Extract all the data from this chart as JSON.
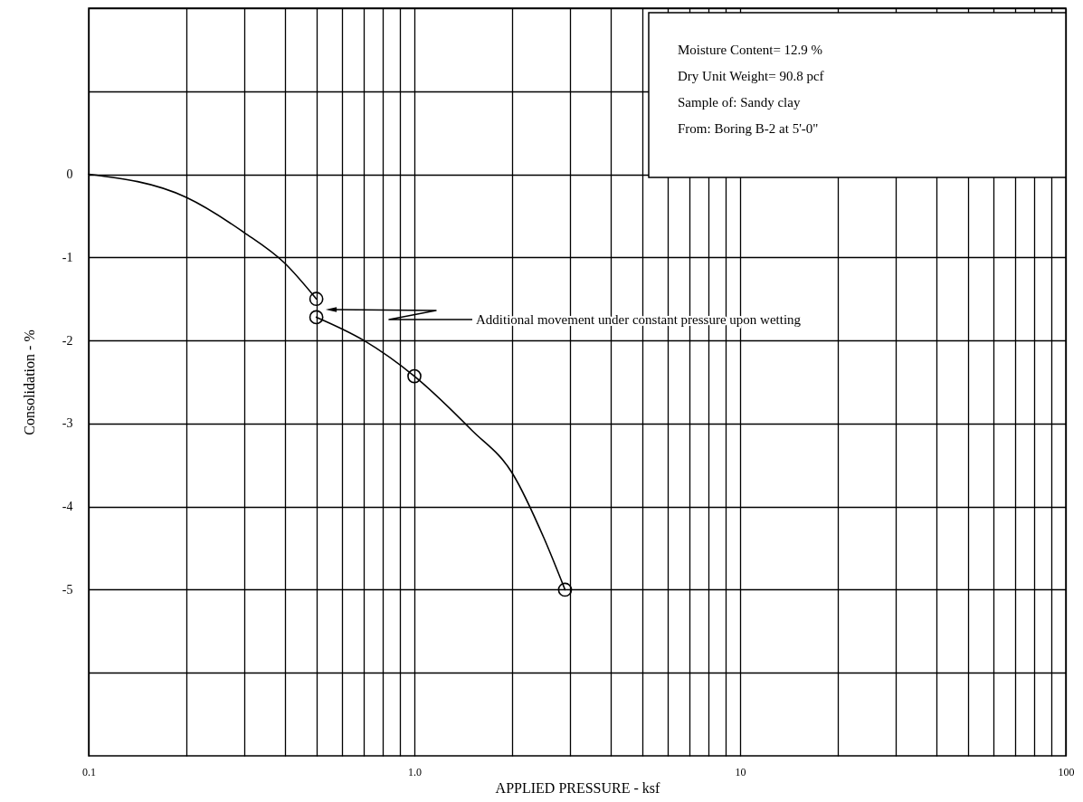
{
  "chart_data": {
    "type": "line",
    "xlabel": "APPLIED PRESSURE - ksf",
    "ylabel": "Consolidation - %",
    "log": "x",
    "grid": true,
    "xlim": [
      0.1,
      100
    ],
    "xticks": [
      {
        "value": 0.1,
        "label": "0.1"
      },
      {
        "value": 0.2,
        "label": null
      },
      {
        "value": 0.3,
        "label": null
      },
      {
        "value": 0.4,
        "label": null
      },
      {
        "value": 0.5,
        "label": null
      },
      {
        "value": 0.6,
        "label": null
      },
      {
        "value": 0.7,
        "label": null
      },
      {
        "value": 0.8,
        "label": null
      },
      {
        "value": 0.9,
        "label": null
      },
      {
        "value": 1,
        "label": "1.0"
      },
      {
        "value": 2,
        "label": null
      },
      {
        "value": 3,
        "label": null
      },
      {
        "value": 4,
        "label": null
      },
      {
        "value": 5,
        "label": null
      },
      {
        "value": 6,
        "label": null
      },
      {
        "value": 7,
        "label": null
      },
      {
        "value": 8,
        "label": null
      },
      {
        "value": 9,
        "label": null
      },
      10,
      {
        "value": 20,
        "label": null
      },
      {
        "value": 30,
        "label": null
      },
      {
        "value": 40,
        "label": null
      },
      {
        "value": 50,
        "label": null
      },
      {
        "value": 60,
        "label": null
      },
      {
        "value": 70,
        "label": null
      },
      {
        "value": 80,
        "label": null
      },
      {
        "value": 90,
        "label": null
      },
      100
    ],
    "ylim": [
      -7,
      2
    ],
    "yticks": [
      {
        "value": 2,
        "label": null
      },
      {
        "value": 1,
        "label": null
      },
      0,
      -1,
      -2,
      -3,
      -4,
      -5,
      {
        "value": -6,
        "label": null
      }
    ],
    "series": [
      {
        "color": "#000000",
        "marker": "none",
        "line_style": "solid",
        "x": [
          0.1,
          0.2,
          0.3,
          0.4,
          0.5
        ],
        "values": [
          0,
          -0.28,
          -0.7,
          -1.07,
          -1.5
        ]
      },
      {
        "color": "#000000",
        "marker": "none",
        "line_style": "solid",
        "x": [
          0.5,
          0.7,
          1.0,
          1.5,
          2.0,
          2.5,
          2.9
        ],
        "values": [
          -1.72,
          -2.0,
          -2.43,
          -3.08,
          -3.6,
          -4.38,
          -5.0
        ]
      },
      {
        "type": "scatter",
        "color": "#000000",
        "marker": "circle",
        "x": [
          0.5,
          0.5,
          1.0,
          2.9
        ],
        "values": [
          -1.5,
          -1.72,
          -2.43,
          -5.0
        ]
      }
    ],
    "annotations": [
      "Moisture Content=  12.9 %",
      "Dry Unit Weight=  90.8 pcf",
      "Sample of:  Sandy clay",
      "From: Boring B-2 at 5'-0\"",
      "Additional movement under constant pressure upon wetting"
    ]
  }
}
